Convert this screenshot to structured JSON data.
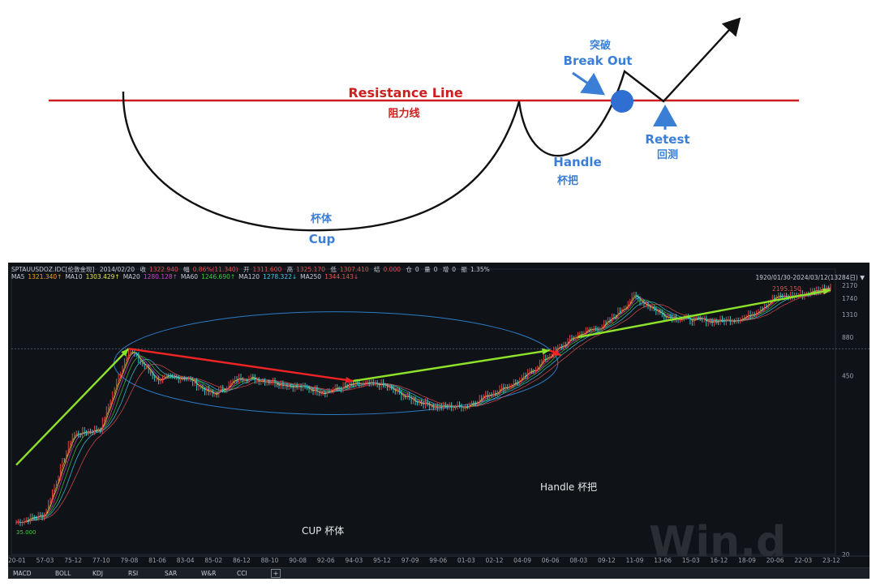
{
  "diagram": {
    "resistance_label": "Resistance Line",
    "resistance_cn": "阻力线",
    "breakout_cn": "突破",
    "breakout_label": "Break Out",
    "retest_label": "Retest",
    "retest_cn": "回测",
    "handle_label": "Handle",
    "handle_cn": "杯把",
    "cup_cn": "杯体",
    "cup_label": "Cup",
    "colors": {
      "resistance": "#cc1f1f",
      "blue_text": "#3a7fd5",
      "breakout_dot": "#2f6fd1"
    }
  },
  "header": {
    "title": "SPTAUUSDOZ.IDC[伦敦金现]",
    "date": "2014/02/20",
    "close_label": "收",
    "close_value": "1322.940",
    "change_label": "幅",
    "change_value": "0.86%(11.340)",
    "open_label": "开",
    "open_value": "1311.600",
    "high_label": "高",
    "high_value": "1325.170",
    "low_label": "低",
    "low_value": "1307.410",
    "vol_label": "结",
    "vol_value": "0.000",
    "hold_label": "仓",
    "hold_value": "0",
    "amount_label": "量",
    "amount_value": "0",
    "add_label": "增",
    "add_value": "0",
    "amp_label": "振",
    "amp_value": "1.35%"
  },
  "ma_legend": [
    {
      "name": "MA5",
      "value": "1321.340↑",
      "color": "#f0a020"
    },
    {
      "name": "MA10",
      "value": "1303.429↑",
      "color": "#e8e84a"
    },
    {
      "name": "MA20",
      "value": "1280.128↑",
      "color": "#d040d0"
    },
    {
      "name": "MA60",
      "value": "1246.690↑",
      "color": "#3cc83c"
    },
    {
      "name": "MA120",
      "value": "1278.322↓",
      "color": "#40c8e8"
    },
    {
      "name": "MA250",
      "value": "1344.143↓",
      "color": "#e05050"
    }
  ],
  "range_text": "1920/01/30-2024/03/12(13284日)",
  "max_label": "2195.150",
  "min_label": "35.000",
  "annotations": {
    "cup": "CUP  杯体",
    "handle": "Handle  杯把"
  },
  "watermark": "Win.d",
  "tabs": [
    "MACD",
    "BOLL",
    "KDJ",
    "RSI",
    "SAR",
    "W&R",
    "CCI"
  ],
  "chart_data": {
    "type": "line",
    "title": "",
    "log_scale": true,
    "y_ticks": [
      2170,
      1740,
      1310,
      880,
      450,
      20
    ],
    "x_ticks": [
      "20-01",
      "57-03",
      "75-12",
      "77-10",
      "79-08",
      "81-06",
      "83-04",
      "85-02",
      "86-12",
      "88-10",
      "90-08",
      "92-06",
      "94-03",
      "95-12",
      "97-09",
      "99-06",
      "01-03",
      "02-12",
      "04-09",
      "06-06",
      "08-03",
      "09-12",
      "11-09",
      "13-06",
      "15-03",
      "16-12",
      "18-09",
      "20-06",
      "22-03",
      "23-12"
    ],
    "series": [
      {
        "x": [
          "20-01",
          "57-03",
          "75-12",
          "77-10",
          "79-08",
          "81-06",
          "83-04",
          "85-02",
          "86-12",
          "88-10",
          "90-08",
          "92-06",
          "94-03",
          "95-12",
          "97-09",
          "99-06",
          "01-03",
          "02-12",
          "04-09",
          "06-06",
          "08-03",
          "09-12",
          "11-09",
          "13-06",
          "15-03",
          "16-12",
          "18-09",
          "20-06",
          "22-03",
          "23-12"
        ],
        "values": [
          35,
          40,
          160,
          180,
          720,
          420,
          440,
          320,
          440,
          410,
          370,
          340,
          385,
          385,
          300,
          260,
          265,
          340,
          420,
          650,
          920,
          1100,
          1800,
          1300,
          1190,
          1160,
          1250,
          1750,
          1850,
          2150
        ]
      }
    ],
    "annotations": {
      "cup_ellipse": "cup",
      "handle": "handle",
      "arrows": [
        {
          "color": "green",
          "from": [
            "20-01",
            95
          ],
          "to": [
            "79-08",
            720
          ]
        },
        {
          "color": "red",
          "from": [
            "79-08",
            720
          ],
          "to": [
            "94-03",
            410
          ]
        },
        {
          "color": "green",
          "from": [
            "94-03",
            410
          ],
          "to": [
            "06-06",
            700
          ]
        },
        {
          "color": "red",
          "from": [
            "06-06",
            700
          ],
          "to": [
            "06-06",
            640
          ]
        },
        {
          "color": "green",
          "from": [
            "08-03",
            880
          ],
          "to": [
            "23-12",
            2000
          ]
        }
      ]
    }
  }
}
